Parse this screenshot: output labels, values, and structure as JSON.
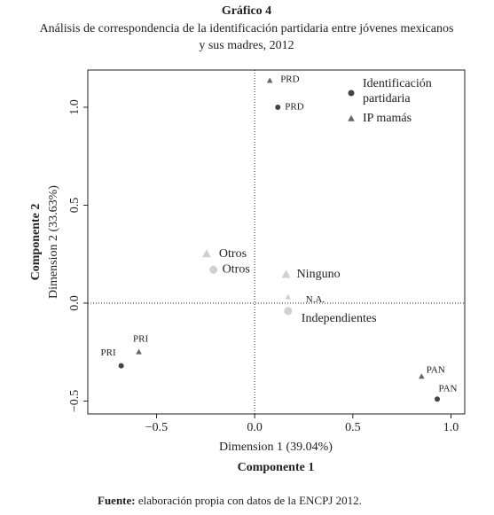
{
  "chart_data": {
    "type": "scatter",
    "title": "Gráfico 4",
    "subtitle": "Análisis de correspondencia de la identificación partidaria entre jóvenes mexicanos",
    "subtitle2": "y sus madres, 2012",
    "x_label": "Dimension 1 (39.04%)",
    "x_title": "Componente 1",
    "y_label": "Dimension 2 (33.63%)",
    "y_title": "Componente 2",
    "source_label": "Fuente:",
    "source_text": "elaboración propia con datos de la ENCPJ 2012.",
    "xlim": [
      -0.85,
      1.07
    ],
    "ylim": [
      -0.566,
      1.19
    ],
    "xticks": [
      {
        "value": -0.5,
        "label": "−0.5"
      },
      {
        "value": 0,
        "label": "0.0"
      },
      0.5,
      {
        "value": 1,
        "label": "1.0"
      }
    ],
    "yticks": [
      {
        "value": -0.5,
        "label": "−0.5"
      },
      {
        "value": 0,
        "label": "0.0"
      },
      0.5,
      {
        "value": 1,
        "label": "1.0"
      }
    ],
    "series": [
      {
        "name": "Identificación partidaria",
        "marker": "circle",
        "color": "#444444",
        "labels": [
          "PRD",
          "Otros",
          "Independientes",
          "PRI",
          "PAN"
        ],
        "x": [
          0.118,
          -0.21,
          0.17,
          -0.68,
          0.93
        ],
        "values": [
          1.0,
          0.17,
          -0.04,
          -0.32,
          -0.49
        ],
        "colors": [
          "#444444",
          "#d0d0d0",
          "#d0d0d0",
          "#444444",
          "#444444"
        ]
      },
      {
        "name": "IP mamás",
        "marker": "triangle",
        "color": "#666666",
        "labels": [
          "PRD",
          "Otros",
          "Ninguno",
          "N.A.",
          "PRI",
          "PAN"
        ],
        "x": [
          0.077,
          -0.245,
          0.16,
          0.17,
          -0.59,
          0.85
        ],
        "values": [
          1.135,
          0.25,
          0.145,
          0.03,
          -0.25,
          -0.375
        ],
        "colors": [
          "#666666",
          "#d0d0d0",
          "#d0d0d0",
          "#d0d0d0",
          "#666666",
          "#666666"
        ]
      }
    ]
  }
}
